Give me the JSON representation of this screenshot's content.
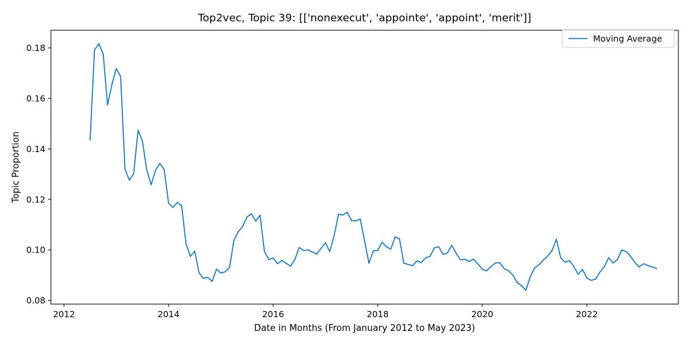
{
  "chart_data": {
    "type": "line",
    "title": "Top2vec, Topic 39: [['nonexecut', 'appointe', 'appoint', 'merit']]",
    "xlabel": "Date in Months (From January 2012 to May 2023)",
    "ylabel": "Topic Proportion",
    "xlim": [
      "2011-10",
      "2023-10"
    ],
    "ylim": [
      0.0785,
      0.187
    ],
    "xticks": [
      {
        "date": "2012-01",
        "label": "2012"
      },
      {
        "date": "2014-01",
        "label": "2014"
      },
      {
        "date": "2016-01",
        "label": "2016"
      },
      {
        "date": "2018-01",
        "label": "2018"
      },
      {
        "date": "2020-01",
        "label": "2020"
      },
      {
        "date": "2022-01",
        "label": "2022"
      }
    ],
    "yticks": [
      0.08,
      0.1,
      0.12,
      0.14,
      0.16,
      0.18
    ],
    "ytick_labels": [
      "0.08",
      "0.10",
      "0.12",
      "0.14",
      "0.16",
      "0.18"
    ],
    "grid": false,
    "legend": {
      "position": "top-right",
      "entries": [
        "Moving Average"
      ]
    },
    "series": [
      {
        "name": "Moving Average",
        "color": "#1f77b4",
        "x": [
          "2012-07",
          "2012-08",
          "2012-09",
          "2012-10",
          "2012-11",
          "2012-12",
          "2013-01",
          "2013-02",
          "2013-03",
          "2013-04",
          "2013-05",
          "2013-06",
          "2013-07",
          "2013-08",
          "2013-09",
          "2013-10",
          "2013-11",
          "2013-12",
          "2014-01",
          "2014-02",
          "2014-03",
          "2014-04",
          "2014-05",
          "2014-06",
          "2014-07",
          "2014-08",
          "2014-09",
          "2014-10",
          "2014-11",
          "2014-12",
          "2015-01",
          "2015-02",
          "2015-03",
          "2015-04",
          "2015-05",
          "2015-06",
          "2015-07",
          "2015-08",
          "2015-09",
          "2015-10",
          "2015-11",
          "2015-12",
          "2016-01",
          "2016-02",
          "2016-03",
          "2016-04",
          "2016-05",
          "2016-06",
          "2016-07",
          "2016-08",
          "2016-09",
          "2016-10",
          "2016-11",
          "2016-12",
          "2017-01",
          "2017-02",
          "2017-03",
          "2017-04",
          "2017-05",
          "2017-06",
          "2017-07",
          "2017-08",
          "2017-09",
          "2017-10",
          "2017-11",
          "2017-12",
          "2018-01",
          "2018-02",
          "2018-03",
          "2018-04",
          "2018-05",
          "2018-06",
          "2018-07",
          "2018-08",
          "2018-09",
          "2018-10",
          "2018-11",
          "2018-12",
          "2019-01",
          "2019-02",
          "2019-03",
          "2019-04",
          "2019-05",
          "2019-06",
          "2019-07",
          "2019-08",
          "2019-09",
          "2019-10",
          "2019-11",
          "2019-12",
          "2020-01",
          "2020-02",
          "2020-03",
          "2020-04",
          "2020-05",
          "2020-06",
          "2020-07",
          "2020-08",
          "2020-09",
          "2020-10",
          "2020-11",
          "2020-12",
          "2021-01",
          "2021-02",
          "2021-03",
          "2021-04",
          "2021-05",
          "2021-06",
          "2021-07",
          "2021-08",
          "2021-09",
          "2021-10",
          "2021-11",
          "2021-12",
          "2022-01",
          "2022-02",
          "2022-03",
          "2022-04",
          "2022-05",
          "2022-06",
          "2022-07",
          "2022-08",
          "2022-09",
          "2022-10",
          "2022-11",
          "2022-12",
          "2023-01",
          "2023-02",
          "2023-03",
          "2023-04",
          "2023-05"
        ],
        "values": [
          0.1435,
          0.1792,
          0.1817,
          0.1776,
          0.1574,
          0.1655,
          0.1718,
          0.1687,
          0.132,
          0.1276,
          0.1302,
          0.1474,
          0.1431,
          0.1316,
          0.1258,
          0.1315,
          0.1343,
          0.1318,
          0.1185,
          0.1168,
          0.1188,
          0.1175,
          0.1025,
          0.0974,
          0.0995,
          0.0909,
          0.0887,
          0.0891,
          0.0875,
          0.0923,
          0.0908,
          0.0913,
          0.093,
          0.1038,
          0.1072,
          0.1092,
          0.113,
          0.1143,
          0.1114,
          0.1137,
          0.0994,
          0.0961,
          0.0968,
          0.0945,
          0.0958,
          0.0947,
          0.0935,
          0.0963,
          0.1009,
          0.0997,
          0.1,
          0.0991,
          0.0983,
          0.1006,
          0.1028,
          0.0993,
          0.1056,
          0.1141,
          0.1138,
          0.1149,
          0.1116,
          0.1115,
          0.1122,
          0.1034,
          0.0947,
          0.0996,
          0.0997,
          0.103,
          0.1012,
          0.1003,
          0.1051,
          0.1043,
          0.0947,
          0.0942,
          0.0937,
          0.0956,
          0.0949,
          0.0968,
          0.0974,
          0.1008,
          0.1012,
          0.0982,
          0.0988,
          0.1018,
          0.0987,
          0.096,
          0.0963,
          0.0954,
          0.0963,
          0.0944,
          0.0923,
          0.0917,
          0.0934,
          0.0948,
          0.0949,
          0.0926,
          0.0917,
          0.09,
          0.0871,
          0.0858,
          0.084,
          0.0893,
          0.0928,
          0.0941,
          0.0959,
          0.0975,
          0.0997,
          0.1042,
          0.0969,
          0.0951,
          0.0957,
          0.0935,
          0.0903,
          0.0922,
          0.0889,
          0.0879,
          0.0884,
          0.0912,
          0.0933,
          0.0969,
          0.0948,
          0.0961,
          0.0999,
          0.0993,
          0.0975,
          0.095,
          0.0932,
          0.0945,
          0.0938,
          0.0932,
          0.0926
        ]
      }
    ]
  }
}
